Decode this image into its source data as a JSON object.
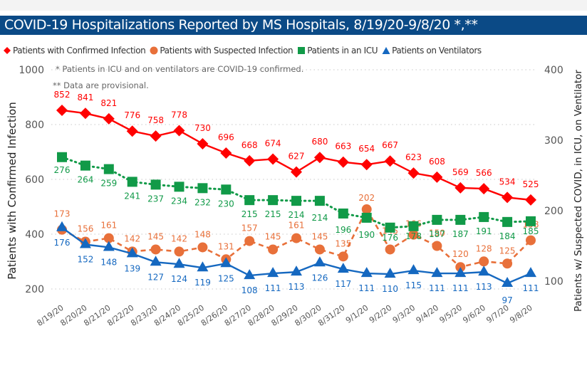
{
  "title": "COVID-19 Hospitalizations Reported by MS Hospitals, 8/19/20-9/8/20 *,**",
  "notes": [
    "* Patients in ICU and on ventilators are COVID-19 confirmed.",
    "** Data are provisional."
  ],
  "chart_data": {
    "type": "line",
    "title": "COVID-19 Hospitalizations Reported by MS Hospitals, 8/19/20-9/8/20 *,**",
    "categories": [
      "8/19/20",
      "8/20/20",
      "8/21/20",
      "8/22/20",
      "8/23/20",
      "8/24/20",
      "8/25/20",
      "8/26/20",
      "8/27/20",
      "8/28/20",
      "8/29/20",
      "8/30/20",
      "8/31/20",
      "9/1/20",
      "9/2/20",
      "9/3/20",
      "9/4/20",
      "9/5/20",
      "9/6/20",
      "9/7/20",
      "9/8/20"
    ],
    "ylabel": "Patients with Confirmed Infection",
    "y2label": "Patients w/ Suspected COVID, in ICU, on Ventilator",
    "ylim": [
      200,
      1000
    ],
    "y2lim": [
      100,
      400
    ],
    "yticks": [
      "1000",
      "800",
      "600",
      "400",
      "200"
    ],
    "y2ticks": [
      "400",
      "300",
      "200",
      "100"
    ],
    "grid": true,
    "legend_position": "top-left",
    "series": [
      {
        "name": "Patients with Confirmed Infection",
        "axis": "left",
        "color": "#ff0000",
        "marker": "diamond",
        "line": "solid",
        "values": [
          852,
          841,
          821,
          776,
          758,
          778,
          730,
          696,
          668,
          674,
          627,
          680,
          663,
          654,
          667,
          623,
          608,
          569,
          566,
          534,
          525
        ]
      },
      {
        "name": "Patients with Suspected Infection",
        "axis": "right",
        "color": "#e8703a",
        "marker": "circle",
        "line": "dashed",
        "values": [
          173,
          156,
          161,
          142,
          145,
          142,
          148,
          131,
          157,
          145,
          161,
          145,
          135,
          202,
          145,
          166,
          150,
          120,
          128,
          125,
          158
        ]
      },
      {
        "name": "Patients in an ICU",
        "axis": "right",
        "color": "#119a48",
        "marker": "square",
        "line": "dotted",
        "values": [
          276,
          264,
          259,
          241,
          237,
          234,
          232,
          230,
          215,
          215,
          214,
          214,
          196,
          190,
          176,
          178,
          187,
          187,
          191,
          184,
          185
        ]
      },
      {
        "name": "Patients on Ventilators",
        "axis": "right",
        "color": "#1568c0",
        "marker": "triangle",
        "line": "solid",
        "values": [
          176,
          152,
          148,
          139,
          127,
          124,
          119,
          125,
          108,
          111,
          113,
          126,
          117,
          111,
          110,
          115,
          111,
          111,
          113,
          97,
          111
        ]
      }
    ]
  }
}
